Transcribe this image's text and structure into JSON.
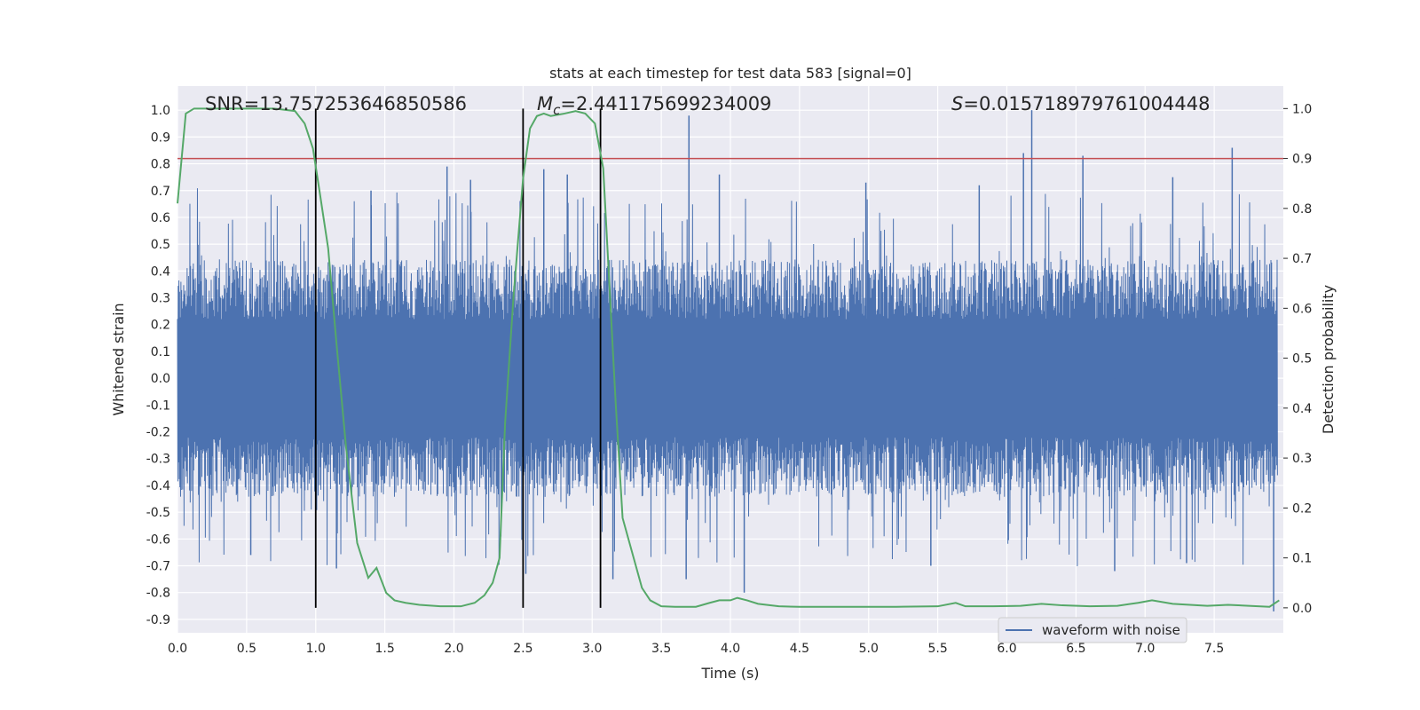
{
  "chart_data": {
    "type": "line",
    "title": "stats at each timestep for test data 583 [signal=0]",
    "xlabel": "Time (s)",
    "ylabel": "Whitened strain",
    "y2label": "Detection probability",
    "xlim": [
      0.0,
      8.0
    ],
    "ylim": [
      -0.95,
      1.09
    ],
    "y2lim": [
      -0.05,
      1.045
    ],
    "grid": true,
    "legend_position": "lower-right",
    "x_ticks": [
      "0.0",
      "0.5",
      "1.0",
      "1.5",
      "2.0",
      "2.5",
      "3.0",
      "3.5",
      "4.0",
      "4.5",
      "5.0",
      "5.5",
      "6.0",
      "6.5",
      "7.0",
      "7.5"
    ],
    "x_tick_values": [
      0.0,
      0.5,
      1.0,
      1.5,
      2.0,
      2.5,
      3.0,
      3.5,
      4.0,
      4.5,
      5.0,
      5.5,
      6.0,
      6.5,
      7.0,
      7.5
    ],
    "y_ticks": [
      "1.0",
      "0.9",
      "0.8",
      "0.7",
      "0.6",
      "0.5",
      "0.4",
      "0.3",
      "0.2",
      "0.1",
      "0.0",
      "-0.1",
      "-0.2",
      "-0.3",
      "-0.4",
      "-0.5",
      "-0.6",
      "-0.7",
      "-0.8",
      "-0.9"
    ],
    "y_tick_values": [
      1.0,
      0.9,
      0.8,
      0.7,
      0.6,
      0.5,
      0.4,
      0.3,
      0.2,
      0.1,
      0.0,
      -0.1,
      -0.2,
      -0.3,
      -0.4,
      -0.5,
      -0.6,
      -0.7,
      -0.8,
      -0.9
    ],
    "y2_ticks": [
      "1.0",
      "0.9",
      "0.8",
      "0.7",
      "0.6",
      "0.5",
      "0.4",
      "0.3",
      "0.2",
      "0.1",
      "0.0"
    ],
    "y2_tick_values": [
      1.0,
      0.9,
      0.8,
      0.7,
      0.6,
      0.5,
      0.4,
      0.3,
      0.2,
      0.1,
      0.0
    ],
    "annotations": [
      {
        "text": "SNR=13.757253646850586",
        "x": 0.2,
        "y": 1.0
      },
      {
        "text": "=2.441175699234009",
        "math": "M",
        "sub": "c",
        "x": 2.6,
        "y": 1.0
      },
      {
        "text": "=0.015718979761004448",
        "math": "S",
        "x": 5.6,
        "y": 1.0
      }
    ],
    "series": [
      {
        "name": "waveform with noise",
        "color": "#4c72b0",
        "axis": "left",
        "noise_envelope": {
          "typical_abs": 0.4,
          "min": -0.92,
          "max": 1.0
        },
        "spikes": [
          {
            "x": 3.7,
            "y": 0.98
          },
          {
            "x": 6.18,
            "y": 1.0
          },
          {
            "x": 6.55,
            "y": 0.83
          },
          {
            "x": 7.63,
            "y": 0.86
          },
          {
            "x": 6.12,
            "y": 0.84
          },
          {
            "x": 4.1,
            "y": -0.8
          },
          {
            "x": 7.93,
            "y": -0.87
          },
          {
            "x": 1.15,
            "y": -0.71
          },
          {
            "x": 3.15,
            "y": -0.75
          },
          {
            "x": 2.52,
            "y": -0.73
          },
          {
            "x": 1.95,
            "y": 0.79
          },
          {
            "x": 2.12,
            "y": 0.74
          },
          {
            "x": 2.65,
            "y": 0.78
          },
          {
            "x": 2.82,
            "y": 0.76
          },
          {
            "x": 3.92,
            "y": 0.76
          },
          {
            "x": 5.8,
            "y": 0.72
          },
          {
            "x": 7.2,
            "y": 0.75
          },
          {
            "x": 4.98,
            "y": 0.73
          },
          {
            "x": 3.68,
            "y": -0.75
          },
          {
            "x": 5.45,
            "y": -0.7
          },
          {
            "x": 6.78,
            "y": -0.72
          },
          {
            "x": 7.3,
            "y": -0.69
          },
          {
            "x": 0.53,
            "y": -0.66
          },
          {
            "x": 1.4,
            "y": 0.7
          }
        ]
      },
      {
        "name": "",
        "color": "#55a868",
        "axis": "right",
        "x": [
          0.0,
          0.06,
          0.12,
          0.3,
          0.5,
          0.7,
          0.85,
          0.92,
          0.98,
          1.03,
          1.09,
          1.15,
          1.22,
          1.3,
          1.38,
          1.44,
          1.51,
          1.57,
          1.65,
          1.75,
          1.9,
          2.05,
          2.15,
          2.22,
          2.28,
          2.33,
          2.37,
          2.43,
          2.5,
          2.55,
          2.6,
          2.65,
          2.7,
          2.8,
          2.88,
          2.95,
          3.02,
          3.08,
          3.12,
          3.17,
          3.22,
          3.3,
          3.36,
          3.42,
          3.5,
          3.6,
          3.75,
          3.85,
          3.92,
          4.0,
          4.05,
          4.12,
          4.2,
          4.35,
          4.5,
          4.7,
          4.9,
          5.2,
          5.5,
          5.63,
          5.7,
          5.9,
          6.1,
          6.25,
          6.4,
          6.6,
          6.8,
          6.95,
          7.05,
          7.2,
          7.45,
          7.6,
          7.75,
          7.9,
          7.97
        ],
        "y": [
          0.81,
          0.99,
          1.0,
          1.0,
          1.0,
          1.0,
          0.995,
          0.97,
          0.92,
          0.83,
          0.72,
          0.53,
          0.32,
          0.13,
          0.06,
          0.08,
          0.03,
          0.015,
          0.01,
          0.006,
          0.003,
          0.003,
          0.01,
          0.025,
          0.05,
          0.1,
          0.37,
          0.62,
          0.86,
          0.96,
          0.985,
          0.99,
          0.985,
          0.99,
          0.995,
          0.99,
          0.97,
          0.88,
          0.67,
          0.41,
          0.18,
          0.1,
          0.04,
          0.015,
          0.003,
          0.002,
          0.002,
          0.01,
          0.015,
          0.015,
          0.02,
          0.015,
          0.008,
          0.003,
          0.002,
          0.002,
          0.002,
          0.002,
          0.003,
          0.01,
          0.003,
          0.003,
          0.004,
          0.008,
          0.005,
          0.003,
          0.004,
          0.01,
          0.015,
          0.008,
          0.004,
          0.006,
          0.004,
          0.002,
          0.015
        ]
      }
    ],
    "hlines": [
      {
        "y": 0.9,
        "axis": "right",
        "color": "#c44e52"
      }
    ],
    "vlines": [
      {
        "x": 1.0,
        "axis": "right",
        "y_from": 0.0,
        "y_to": 1.0,
        "color": "#000000"
      },
      {
        "x": 2.5,
        "axis": "right",
        "y_from": 0.0,
        "y_to": 1.0,
        "color": "#000000"
      },
      {
        "x": 3.06,
        "axis": "right",
        "y_from": 0.0,
        "y_to": 1.0,
        "color": "#000000"
      }
    ],
    "colors": {
      "background": "#eaeaf2",
      "grid": "#ffffff",
      "waveform": "#4c72b0",
      "probability": "#55a868",
      "threshold": "#c44e52"
    },
    "legend": [
      {
        "label": "waveform with noise",
        "color": "#4c72b0"
      }
    ]
  }
}
